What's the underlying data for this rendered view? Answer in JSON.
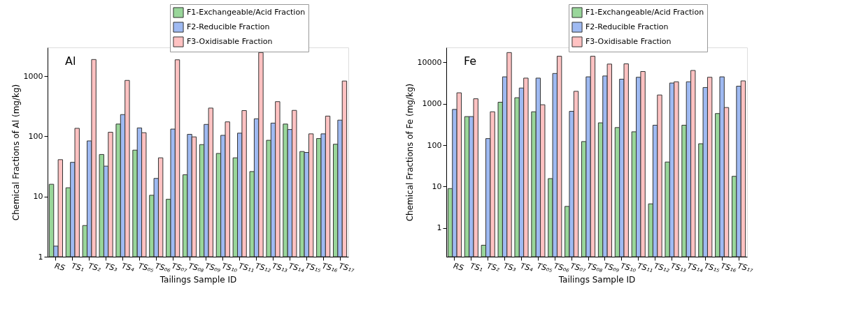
{
  "chart_data": [
    {
      "type": "bar",
      "title": "Al",
      "xlabel": "Tailings Sample ID",
      "ylabel": "Chemical Fractions of Al (mg/kg)",
      "categories": [
        "RS",
        "TS₁",
        "TS₂",
        "TS₃",
        "TS₄",
        "TS₀₅",
        "TS₀₆",
        "TS₀₇",
        "TS₀₈",
        "TS₀₉",
        "TS₁₀",
        "TS₁₁",
        "TS₁₂",
        "TS₁₃",
        "TS₁₄",
        "TS₁₅",
        "TS₁₆",
        "TS₁₇"
      ],
      "series": [
        {
          "name": "F1-Exchangeable/Acid Fraction",
          "color": "#99d69a",
          "values": [
            16,
            14,
            3.3,
            50,
            160,
            59,
            10.5,
            9,
            23,
            73,
            52,
            44,
            26,
            86,
            160,
            56,
            92,
            74
          ]
        },
        {
          "name": "F2-Reducible Fraction",
          "color": "#9fbaf2",
          "values": [
            1.5,
            37,
            84,
            32,
            230,
            138,
            20,
            132,
            108,
            158,
            104,
            113,
            196,
            166,
            130,
            54,
            110,
            186
          ]
        },
        {
          "name": "F3-Oxidisable Fraction",
          "color": "#ffc2c2",
          "values": [
            41,
            136,
            1890,
            117,
            850,
            115,
            44,
            1870,
            98,
            295,
            174,
            268,
            2470,
            377,
            270,
            110,
            217,
            830
          ]
        }
      ],
      "ylim": [
        1,
        3000
      ],
      "yticks": [
        1,
        10,
        100,
        1000
      ],
      "log": true,
      "grid": false,
      "legend": "top right"
    },
    {
      "type": "bar",
      "title": "Fe",
      "xlabel": "Tailings Sample ID",
      "ylabel": "Chemical Fractions of Fe (mg/kg)",
      "categories": [
        "RS",
        "TS₁",
        "TS₂",
        "TS₃",
        "TS₄",
        "TS₀₅",
        "TS₀₆",
        "TS₀₇",
        "TS₀₈",
        "TS₀₉",
        "TS₁₀",
        "TS₁₁",
        "TS₁₂",
        "TS₁₃",
        "TS₁₄",
        "TS₁₅",
        "TS₁₆",
        "TS₁₇"
      ],
      "series": [
        {
          "name": "F1-Exchangeable/Acid Fraction",
          "color": "#99d69a",
          "values": [
            8.9,
            490,
            0.38,
            1090,
            1400,
            640,
            15.5,
            3.3,
            122,
            346,
            266,
            210,
            3.8,
            39,
            303,
            108,
            580,
            17.6
          ]
        },
        {
          "name": "F2-Reducible Fraction",
          "color": "#9fbaf2",
          "values": [
            730,
            490,
            144,
            4480,
            2400,
            4170,
            5400,
            656,
            4480,
            4700,
            3930,
            4370,
            303,
            3170,
            3400,
            2470,
            4480,
            2660
          ]
        },
        {
          "name": "F3-Oxidisable Fraction",
          "color": "#ffc2c2",
          "values": [
            1840,
            1320,
            640,
            17300,
            4170,
            946,
            14100,
            2000,
            14100,
            9100,
            9230,
            6020,
            1630,
            3400,
            6380,
            4370,
            811,
            3570
          ]
        }
      ],
      "ylim": [
        0.2,
        23000
      ],
      "yticks": [
        1,
        10,
        100,
        1000,
        10000
      ],
      "log": true,
      "grid": false,
      "legend": "top right"
    }
  ]
}
